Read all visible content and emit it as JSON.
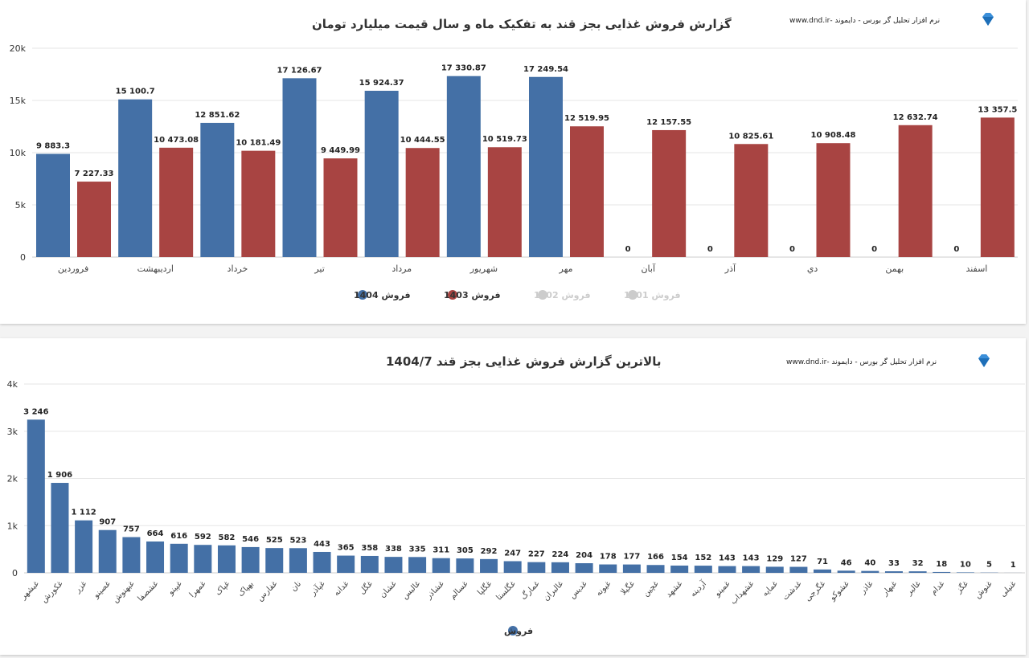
{
  "brand": "نرم افزار تحلیل گر بورس - دایموند -www.dnd.ir",
  "chart_data": [
    {
      "type": "bar",
      "title": "گزارش فروش غذایی بجز قند به تفکیک ماه و سال قیمت میلیارد تومان",
      "categories": [
        "فروردین",
        "اردیبهشت",
        "خرداد",
        "تیر",
        "مرداد",
        "شهریور",
        "مهر",
        "آبان",
        "آذر",
        "دي",
        "بهمن",
        "اسفند"
      ],
      "ylim": [
        0,
        20000
      ],
      "yticks": [
        "0",
        "5k",
        "10k",
        "15k",
        "20k"
      ],
      "grid": true,
      "legend": "bottom",
      "series": [
        {
          "name": "فروش 1404",
          "color": "#4470a6",
          "visible": true,
          "values": [
            9883.3,
            15100.7,
            12851.62,
            17126.67,
            15924.37,
            17330.87,
            17249.54,
            0,
            0,
            0,
            0,
            0
          ],
          "labels": [
            "9 883.3",
            "15 100.7",
            "12 851.62",
            "17 126.67",
            "15 924.37",
            "17 330.87",
            "17 249.54",
            "0",
            "0",
            "0",
            "0",
            "0"
          ]
        },
        {
          "name": "فروش 1403",
          "color": "#a84442",
          "visible": true,
          "values": [
            7227.33,
            10473.08,
            10181.49,
            9449.99,
            10444.55,
            10519.73,
            12519.95,
            12157.55,
            10825.61,
            10908.48,
            12632.74,
            13357.5
          ],
          "labels": [
            "7 227.33",
            "10 473.08",
            "10 181.49",
            "9 449.99",
            "10 444.55",
            "10 519.73",
            "12 519.95",
            "12 157.55",
            "10 825.61",
            "10 908.48",
            "12 632.74",
            "13 357.5"
          ]
        },
        {
          "name": "فروش 1402",
          "color": "#cccccc",
          "visible": false
        },
        {
          "name": "فروش 1401",
          "color": "#cccccc",
          "visible": false
        }
      ]
    },
    {
      "type": "bar",
      "title": "بالاترین گزارش فروش غذایی بجز قند 1404/7",
      "ylim": [
        0,
        4000
      ],
      "yticks": [
        "0",
        "1k",
        "2k",
        "3k",
        "4k"
      ],
      "grid": true,
      "legend": "bottom",
      "categories": [
        "غبشهر",
        "غکورش",
        "غزر",
        "غصینو",
        "غبهنوش",
        "غشصفا",
        "غپینو",
        "غمهرا",
        "غپاک",
        "بهپاک",
        "غفارس",
        "نان",
        "غپآذر",
        "غدانه",
        "غگل",
        "غشان",
        "غالبس",
        "غشاذر",
        "غسالم",
        "غگلپا",
        "غگلستا",
        "غمارگ",
        "غالبران",
        "غدیس",
        "غیونه",
        "غگیلا",
        "غچین",
        "غشهد",
        "آردینه",
        "غمینو",
        "غشهداب",
        "غمایه",
        "غدشت",
        "غگرجی",
        "غشوکو",
        "غاذر",
        "غبهار",
        "غالبر",
        "غدام",
        "غگز",
        "غنوش",
        "غنیلی"
      ],
      "series": [
        {
          "name": "فروش",
          "color": "#4470a6",
          "values": [
            3246,
            1906,
            1112,
            907,
            757,
            664,
            616,
            592,
            582,
            546,
            525,
            523,
            443,
            365,
            358,
            338,
            335,
            311,
            305,
            292,
            247,
            227,
            224,
            204,
            178,
            177,
            166,
            154,
            152,
            143,
            143,
            129,
            127,
            71,
            46,
            40,
            33,
            32,
            18,
            10,
            5,
            1
          ],
          "labels": [
            "3 246",
            "1 906",
            "1 112",
            "907",
            "757",
            "664",
            "616",
            "592",
            "582",
            "546",
            "525",
            "523",
            "443",
            "365",
            "358",
            "338",
            "335",
            "311",
            "305",
            "292",
            "247",
            "227",
            "224",
            "204",
            "178",
            "177",
            "166",
            "154",
            "152",
            "143",
            "143",
            "129",
            "127",
            "71",
            "46",
            "40",
            "33",
            "32",
            "18",
            "10",
            "5",
            "1"
          ]
        }
      ]
    }
  ]
}
